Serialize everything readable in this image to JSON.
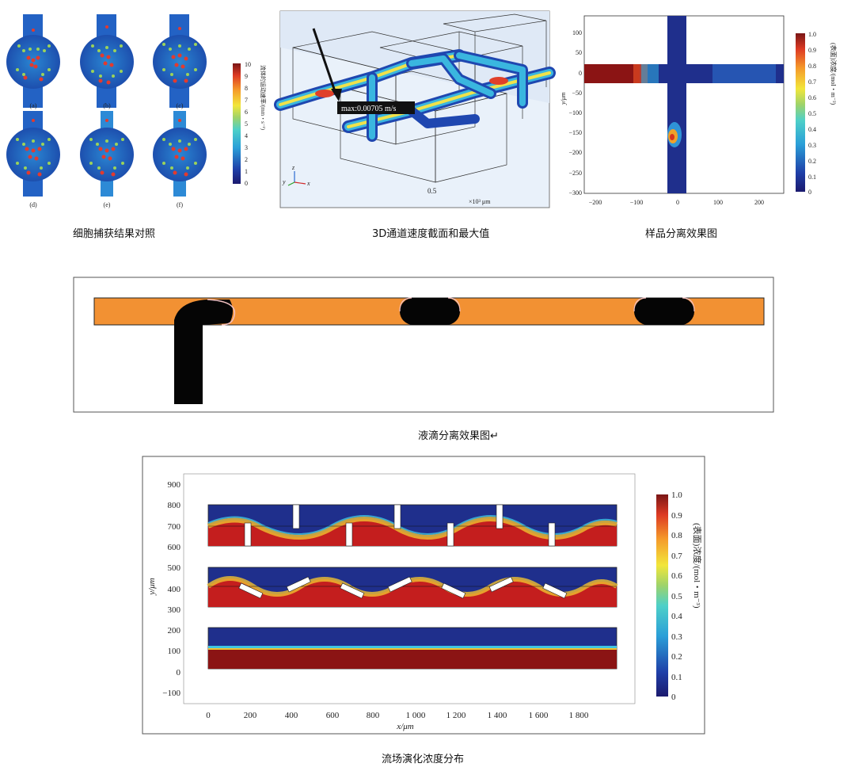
{
  "panel_cells": {
    "cell_labels": [
      "(a)",
      "(b)",
      "(c)",
      "(d)",
      "(e)",
      "(f)"
    ],
    "colorbar_ticks": [
      "10",
      "9",
      "8",
      "7",
      "6",
      "5",
      "4",
      "3",
      "2",
      "1",
      "0"
    ],
    "colorbar_title": "流体的运动速率/(mm・s⁻¹)",
    "caption": "细胞捕获结果对照"
  },
  "panel_3d": {
    "annotation": "max:0.00705 m/s",
    "axis_value": "0.5",
    "axis_unit": "×10³ μm",
    "axis_letters": [
      "z",
      "y",
      "x"
    ],
    "caption": "3D通道速度截面和最大值"
  },
  "panel_cross": {
    "y_ticks": [
      "100",
      "50",
      "0",
      "−50",
      "−100",
      "−150",
      "−200",
      "−250",
      "−300"
    ],
    "x_ticks": [
      "−200",
      "−100",
      "0",
      "100",
      "200"
    ],
    "ylabel": "y/μm",
    "colorbar_ticks": [
      "1.0",
      "0.9",
      "0.8",
      "0.7",
      "0.6",
      "0.5",
      "0.4",
      "0.3",
      "0.2",
      "0.1",
      "0"
    ],
    "colorbar_title": "(表面)浓度/(mol・m⁻³)",
    "caption": "样品分离效果图"
  },
  "panel_droplet": {
    "caption": "液滴分离效果图↵"
  },
  "panel_flow": {
    "y_ticks": [
      "900",
      "800",
      "700",
      "600",
      "500",
      "400",
      "300",
      "200",
      "100",
      "0",
      "−100"
    ],
    "x_ticks": [
      "0",
      "200",
      "400",
      "600",
      "800",
      "1 000",
      "1 200",
      "1 400",
      "1 600",
      "1 800"
    ],
    "ylabel": "y/μm",
    "xlabel": "x/μm",
    "colorbar_ticks": [
      "1.0",
      "0.9",
      "0.8",
      "0.7",
      "0.6",
      "0.5",
      "0.4",
      "0.3",
      "0.2",
      "0.1",
      "0"
    ],
    "colorbar_title": "(表面)浓度/(mol・m⁻³)",
    "caption": "流场演化浓度分布"
  }
}
